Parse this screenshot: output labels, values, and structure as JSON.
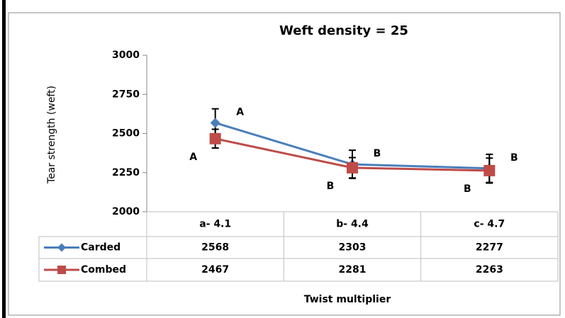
{
  "chart_data": {
    "type": "line",
    "title": "Weft density = 25",
    "y_label": "Tear strength (weft)",
    "x_label": "Twist multiplier",
    "categories": [
      "a- 4.1",
      "b- 4.4",
      "c- 4.7"
    ],
    "series": [
      {
        "name": "Carded",
        "color": "#4a7ebb",
        "marker": "diamond",
        "values": [
          2568,
          2303,
          2277
        ],
        "errors": [
          90,
          90,
          90
        ],
        "point_labels": [
          "A",
          "B",
          "B"
        ]
      },
      {
        "name": "Combed",
        "color": "#be4b48",
        "marker": "square",
        "values": [
          2467,
          2281,
          2263
        ],
        "errors": [
          60,
          65,
          80
        ],
        "point_labels": [
          "A",
          "B",
          "B"
        ]
      }
    ],
    "ylim": [
      2000,
      3000
    ],
    "yticks": [
      2000,
      2250,
      2500,
      2750,
      3000
    ],
    "grid": false,
    "data_table": true
  }
}
